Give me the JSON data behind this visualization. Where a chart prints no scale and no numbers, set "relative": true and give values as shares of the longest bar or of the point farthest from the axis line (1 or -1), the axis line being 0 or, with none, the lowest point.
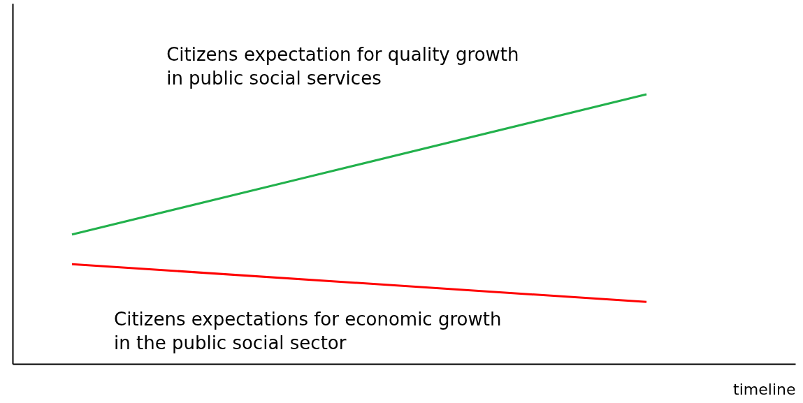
{
  "chart_data": {
    "type": "line",
    "relative": true,
    "xlabel": "timeline",
    "categories": [
      null,
      null
    ],
    "series": [
      {
        "name": "Citizens expectation for quality growth in public social services",
        "color": "#22b14c",
        "values": [
          0.48,
          1
        ]
      },
      {
        "name": "Citizens expectations for economic growth in the public social sector",
        "color": "#ff0000",
        "values": [
          0.37,
          0.23
        ]
      }
    ]
  }
}
